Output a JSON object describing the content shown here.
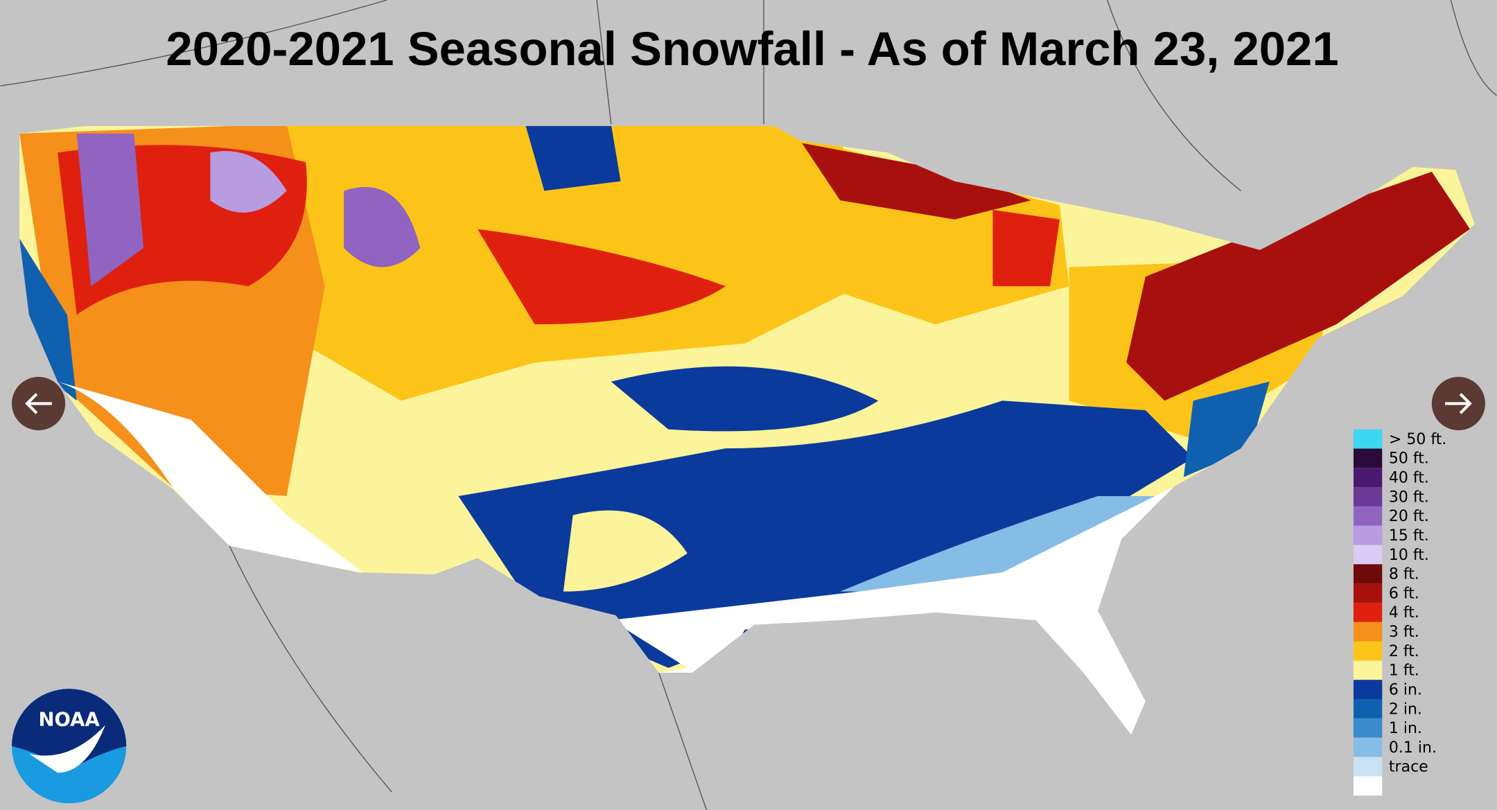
{
  "title": "2020-2021 Seasonal Snowfall - As of March 23, 2021",
  "legend": [
    {
      "label": "> 50 ft.",
      "color": "#3fd6f0"
    },
    {
      "label": "50 ft.",
      "color": "#2a0a3a"
    },
    {
      "label": "40 ft.",
      "color": "#4b1a6e"
    },
    {
      "label": "30 ft.",
      "color": "#6a3a98"
    },
    {
      "label": "20 ft.",
      "color": "#9064c0"
    },
    {
      "label": "15 ft.",
      "color": "#b79ce0"
    },
    {
      "label": "10 ft.",
      "color": "#d8ccf4"
    },
    {
      "label": "8 ft.",
      "color": "#6e0a0a"
    },
    {
      "label": "6 ft.",
      "color": "#a8100e"
    },
    {
      "label": "4 ft.",
      "color": "#e0200e"
    },
    {
      "label": "3 ft.",
      "color": "#f5901a"
    },
    {
      "label": "2 ft.",
      "color": "#fcc418"
    },
    {
      "label": "1 ft.",
      "color": "#fcf49a"
    },
    {
      "label": "6 in.",
      "color": "#0a3a9c"
    },
    {
      "label": "2 in.",
      "color": "#1060b0"
    },
    {
      "label": "1 in.",
      "color": "#3a8ccc"
    },
    {
      "label": "0.1 in.",
      "color": "#86bde6"
    },
    {
      "label": "trace",
      "color": "#c8e2f4"
    },
    {
      "label": "",
      "color": "#ffffff"
    }
  ],
  "logo": "NOAA"
}
